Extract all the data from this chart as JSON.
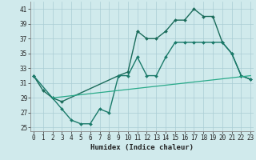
{
  "lines": [
    {
      "x": [
        0,
        1,
        2,
        3,
        9,
        10,
        11,
        12,
        13,
        14,
        15,
        16,
        17,
        18,
        19,
        20,
        21,
        22,
        23
      ],
      "y": [
        32,
        30,
        29,
        28.5,
        32,
        32.5,
        38,
        37,
        37,
        38,
        39.5,
        39.5,
        41,
        40,
        40,
        36.5,
        35,
        32,
        31.5
      ],
      "color": "#1a6b5a",
      "linewidth": 1.0,
      "marker": "D",
      "markersize": 2.0
    },
    {
      "x": [
        0,
        2,
        3,
        4,
        5,
        6,
        7,
        8,
        9,
        10,
        11,
        12,
        13,
        14,
        15,
        16,
        17,
        18,
        19,
        20,
        21,
        22,
        23
      ],
      "y": [
        32,
        29,
        27.5,
        26,
        25.5,
        25.5,
        27.5,
        27,
        32,
        32,
        34.5,
        32,
        32,
        34.5,
        36.5,
        36.5,
        36.5,
        36.5,
        36.5,
        36.5,
        35,
        32,
        31.5
      ],
      "color": "#1a7a6a",
      "linewidth": 1.0,
      "marker": "D",
      "markersize": 2.0
    },
    {
      "x": [
        2,
        23
      ],
      "y": [
        29,
        32
      ],
      "color": "#2aaa8a",
      "linewidth": 0.9,
      "marker": null,
      "markersize": 0
    }
  ],
  "xlim": [
    -0.3,
    23.3
  ],
  "ylim": [
    24.5,
    42
  ],
  "yticks": [
    25,
    27,
    29,
    31,
    33,
    35,
    37,
    39,
    41
  ],
  "xticks": [
    0,
    1,
    2,
    3,
    4,
    5,
    6,
    7,
    8,
    9,
    10,
    11,
    12,
    13,
    14,
    15,
    16,
    17,
    18,
    19,
    20,
    21,
    22,
    23
  ],
  "xlabel": "Humidex (Indice chaleur)",
  "bg_color": "#d0eaec",
  "grid_color": "#aaccd4",
  "axis_color": "#888888",
  "tick_color": "#222222",
  "xlabel_fontsize": 6.5,
  "tick_fontsize": 5.5
}
